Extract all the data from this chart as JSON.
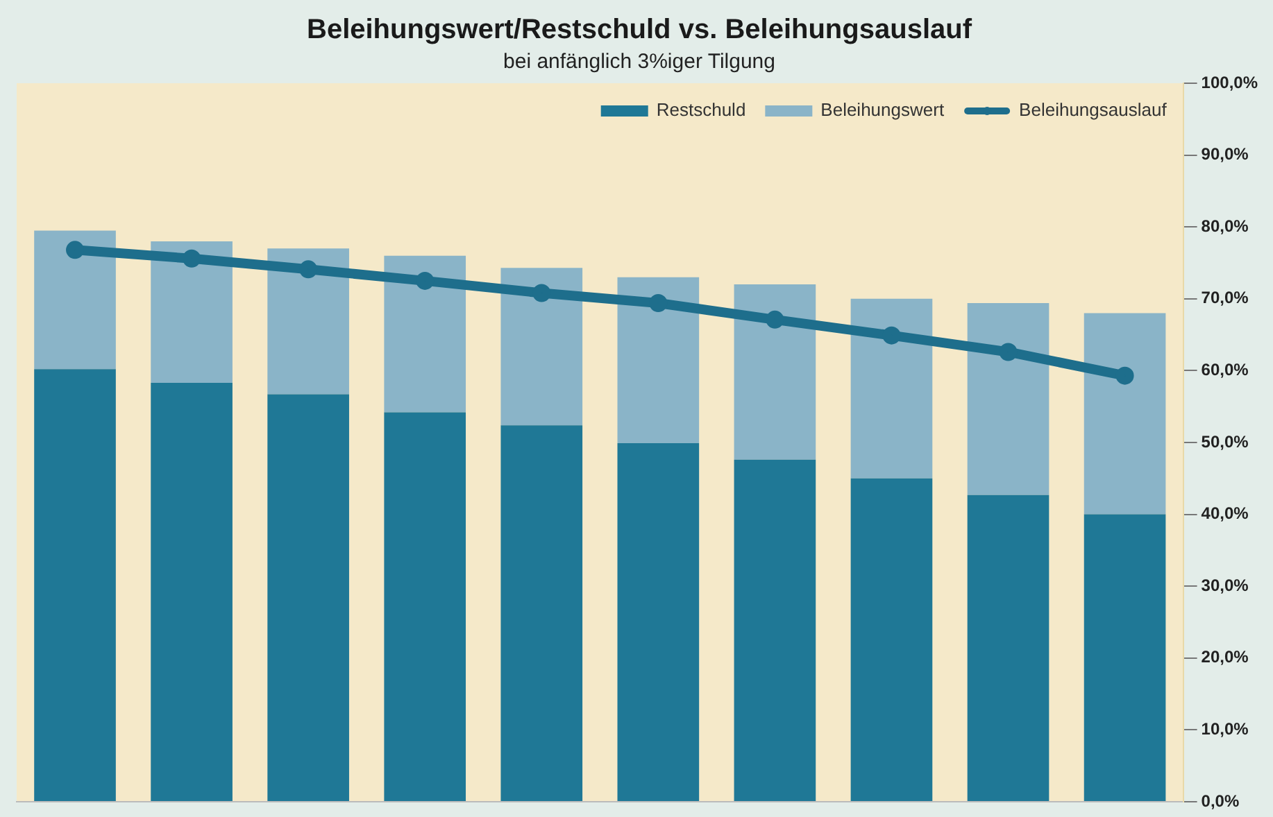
{
  "chart_data": {
    "type": "bar",
    "title": "Beleihungswert/Restschuld vs. Beleihungsauslauf",
    "subtitle": "bei anfänglich 3%iger Tilgung",
    "categories": [
      null,
      null,
      null,
      null,
      null,
      null,
      null,
      null,
      null,
      null
    ],
    "stacked": true,
    "series": [
      {
        "name": "Restschuld",
        "color": "#1f7896",
        "values": [
          60.2,
          58.3,
          56.7,
          54.2,
          52.4,
          49.9,
          47.6,
          45,
          42.7,
          40
        ]
      },
      {
        "name": "Beleihungswert",
        "color": "#8ab4c8",
        "values": [
          19.3,
          19.7,
          20.3,
          21.8,
          21.9,
          23.1,
          24.4,
          25,
          26.7,
          28
        ]
      },
      {
        "name": "Beleihungsauslauf",
        "type": "line",
        "color": "#1e6e8c",
        "values": [
          76.8,
          75.6,
          74.1,
          72.5,
          70.8,
          69.4,
          67.1,
          64.9,
          62.6,
          59.3
        ]
      }
    ],
    "ylim": [
      0,
      100
    ],
    "yticks": [
      {
        "value": 0,
        "label": "0,0%"
      },
      {
        "value": 10,
        "label": "10,0%"
      },
      {
        "value": 20,
        "label": "20,0%"
      },
      {
        "value": 30,
        "label": "30,0%"
      },
      {
        "value": 40,
        "label": "40,0%"
      },
      {
        "value": 50,
        "label": "50,0%"
      },
      {
        "value": 60,
        "label": "60,0%"
      },
      {
        "value": 70,
        "label": "70,0%"
      },
      {
        "value": 80,
        "label": "80,0%"
      },
      {
        "value": 90,
        "label": "90,0%"
      },
      {
        "value": 100,
        "label": "100,0%"
      }
    ],
    "tick_labels": "y",
    "grid": false,
    "legend": "top right",
    "marker": "circle"
  }
}
